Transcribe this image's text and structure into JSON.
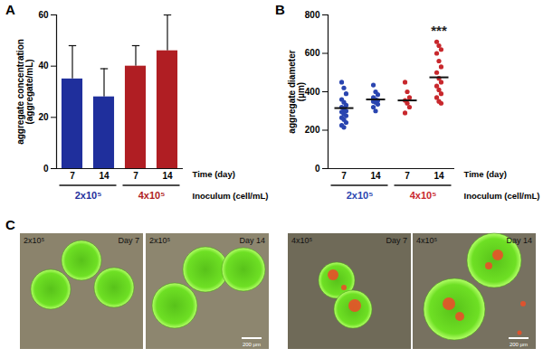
{
  "chart_data": [
    {
      "panel": "A",
      "type": "bar",
      "categories": [
        "7",
        "14",
        "7",
        "14"
      ],
      "values": [
        35,
        28,
        40,
        46
      ],
      "errors": [
        13,
        11,
        8,
        14
      ],
      "colors": [
        "#1f2f9c",
        "#1f2f9c",
        "#b01e23",
        "#b01e23"
      ],
      "group_labels": [
        "2x10⁵",
        "2x10⁵",
        "4x10⁵",
        "4x10⁵"
      ],
      "x_label": "Time (day)",
      "group_axis_label": "Inoculum (cell/mL)",
      "y_label": "aggregate concentration\n(aggregate/mL)",
      "ylim": [
        0,
        60
      ],
      "yticks": [
        0,
        20,
        40,
        60
      ]
    },
    {
      "panel": "B",
      "type": "scatter",
      "categories": [
        "7",
        "14",
        "7",
        "14"
      ],
      "values": [
        [
          450,
          420,
          390,
          360,
          345,
          330,
          320,
          310,
          300,
          295,
          285,
          275,
          265,
          255,
          240,
          225,
          215
        ],
        [
          435,
          400,
          385,
          370,
          360,
          355,
          350,
          345,
          335,
          320,
          300
        ],
        [
          450,
          400,
          370,
          355,
          340,
          320,
          290
        ],
        [
          660,
          640,
          620,
          600,
          560,
          530,
          500,
          470,
          450,
          430,
          410,
          390,
          370,
          350,
          340
        ]
      ],
      "means": [
        315,
        360,
        355,
        475
      ],
      "colors": [
        "#2a45b0",
        "#2a45b0",
        "#c8282d",
        "#c8282d"
      ],
      "group_labels": [
        "2x10⁵",
        "2x10⁵",
        "4x10⁵",
        "4x10⁵"
      ],
      "x_label": "Time (day)",
      "group_axis_label": "Inoculum (cell/mL)",
      "y_label": "aggregate diameter\n(µm)",
      "annotations": [
        {
          "text": "***",
          "x": 3
        }
      ],
      "ylim": [
        0,
        800
      ],
      "yticks": [
        0,
        200,
        400,
        600,
        800
      ]
    }
  ],
  "panel_c": {
    "panel": "C",
    "images": [
      {
        "inoculum": "2x10⁵",
        "day": "Day 7"
      },
      {
        "inoculum": "2x10⁵",
        "day": "Day 14",
        "scale_bar": "200 µm"
      },
      {
        "inoculum": "4x10⁵",
        "day": "Day 7"
      },
      {
        "inoculum": "4x10⁵",
        "day": "Day 14",
        "scale_bar": "200 µm"
      }
    ]
  }
}
